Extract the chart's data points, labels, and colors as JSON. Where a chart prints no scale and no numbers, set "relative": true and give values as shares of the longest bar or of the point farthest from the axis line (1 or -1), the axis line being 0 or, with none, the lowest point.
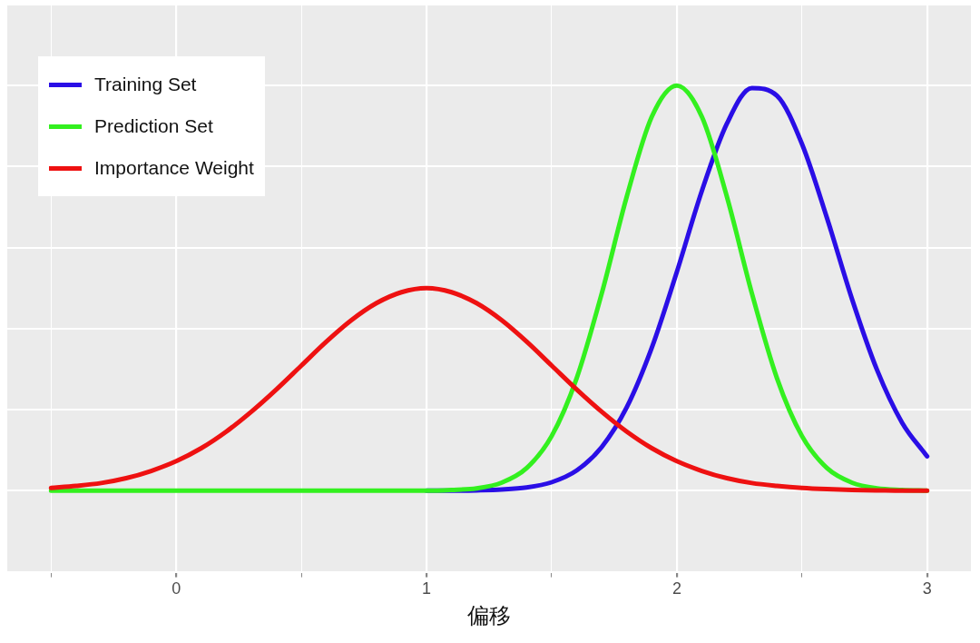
{
  "chart_data": {
    "type": "line",
    "relative": true,
    "xlabel": "偏移",
    "x": [
      -0.5,
      -0.4,
      -0.3,
      -0.2,
      -0.1,
      0,
      0.1,
      0.2,
      0.3,
      0.4,
      0.5,
      0.6,
      0.7,
      0.8,
      0.9,
      1.0,
      1.1,
      1.2,
      1.3,
      1.4,
      1.5,
      1.6,
      1.7,
      1.8,
      1.9,
      2.0,
      2.1,
      2.2,
      2.3,
      2.4,
      2.5,
      2.6,
      2.7,
      2.8,
      2.9,
      3.0
    ],
    "series": [
      {
        "name": "Training Set",
        "color": "#2a0ee6",
        "values": [
          null,
          null,
          null,
          null,
          null,
          null,
          null,
          null,
          null,
          null,
          null,
          null,
          null,
          null,
          null,
          0,
          0,
          0.001,
          0.003,
          0.008,
          0.021,
          0.05,
          0.108,
          0.206,
          0.353,
          0.54,
          0.74,
          0.906,
          0.994,
          0.975,
          0.856,
          0.673,
          0.473,
          0.298,
          0.168,
          0.085
        ]
      },
      {
        "name": "Prediction Set",
        "color": "#33f01f",
        "values": [
          0,
          0,
          0,
          0,
          0,
          0,
          0,
          0,
          0,
          0,
          0,
          0,
          0,
          0,
          0,
          0,
          0.002,
          0.006,
          0.02,
          0.056,
          0.135,
          0.278,
          0.487,
          0.726,
          0.923,
          1,
          0.923,
          0.726,
          0.487,
          0.278,
          0.135,
          0.056,
          0.02,
          0.006,
          0.002,
          0
        ]
      },
      {
        "name": "Importance Weight",
        "color": "#ee1111",
        "values": [
          0.007,
          0.012,
          0.019,
          0.031,
          0.049,
          0.073,
          0.105,
          0.146,
          0.195,
          0.25,
          0.309,
          0.368,
          0.421,
          0.463,
          0.49,
          0.5,
          0.49,
          0.463,
          0.421,
          0.368,
          0.309,
          0.25,
          0.195,
          0.146,
          0.105,
          0.073,
          0.049,
          0.031,
          0.019,
          0.012,
          0.007,
          0.004,
          0.002,
          0.001,
          0,
          0
        ]
      }
    ],
    "xlim": [
      -0.675,
      3.175
    ],
    "xticks": [
      {
        "value": -0.5,
        "label": null
      },
      0,
      {
        "value": 0.5,
        "label": null
      },
      1,
      {
        "value": 1.5,
        "label": null
      },
      2,
      {
        "value": 2.5,
        "label": null
      },
      3
    ],
    "grid": true,
    "legend": "top left",
    "marker": "none",
    "line_style": "solid"
  }
}
